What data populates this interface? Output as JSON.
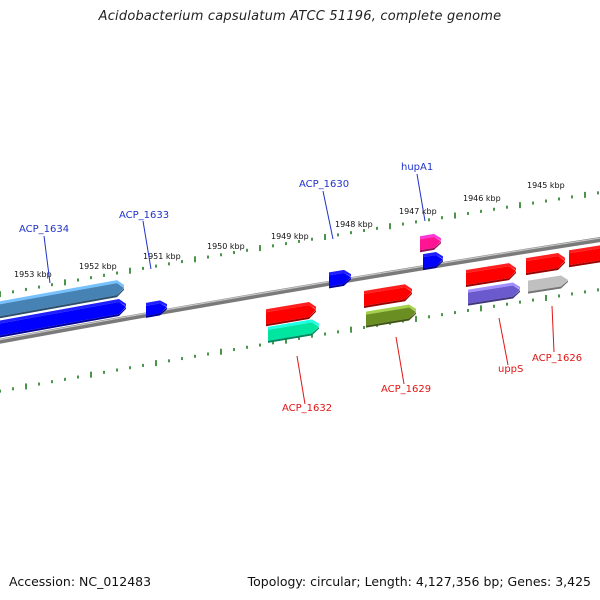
{
  "title": "Acidobacterium capsulatum ATCC 51196, complete genome",
  "footer": {
    "accession": "Accession: NC_012483",
    "summary": "Topology: circular; Length: 4,127,356 bp; Genes: 3,425"
  },
  "colors": {
    "backbone": "#7a7a7a",
    "tick": "#1e7a1e",
    "label_forward": "#1f33c8",
    "label_reverse": "#e01515"
  },
  "ticks": [
    "1953 kbp",
    "1952 kbp",
    "1951 kbp",
    "1950 kbp",
    "1949 kbp",
    "1948 kbp",
    "1947 kbp",
    "1946 kbp",
    "1945 kbp"
  ],
  "genes": [
    {
      "strand": "+",
      "color": "#4682b4"
    },
    {
      "strand": "+",
      "color": "#0000ff"
    },
    {
      "strand": "+",
      "color": "#0000ff"
    },
    {
      "strand": "-",
      "color": "#ff0000"
    },
    {
      "strand": "-",
      "color": "#00e5a0"
    },
    {
      "strand": "+",
      "color": "#0000ff"
    },
    {
      "strand": "-",
      "color": "#ff0000"
    },
    {
      "strand": "-",
      "color": "#6b8e23"
    },
    {
      "strand": "+",
      "color": "#ff1493"
    },
    {
      "strand": "+",
      "color": "#0000ff"
    },
    {
      "strand": "-",
      "color": "#ff0000"
    },
    {
      "strand": "-",
      "color": "#6a5acd"
    },
    {
      "strand": "-",
      "color": "#ff0000"
    },
    {
      "strand": "-",
      "color": "#c0c0c0"
    },
    {
      "strand": "-",
      "color": "#ff0000"
    }
  ],
  "labels": [
    {
      "text": "ACP_1634",
      "strand": "+"
    },
    {
      "text": "ACP_1633",
      "strand": "+"
    },
    {
      "text": "ACP_1630",
      "strand": "+"
    },
    {
      "text": "hupA1",
      "strand": "+"
    },
    {
      "text": "ACP_1632",
      "strand": "-"
    },
    {
      "text": "ACP_1629",
      "strand": "-"
    },
    {
      "text": "uppS",
      "strand": "-"
    },
    {
      "text": "ACP_1626",
      "strand": "-"
    }
  ]
}
